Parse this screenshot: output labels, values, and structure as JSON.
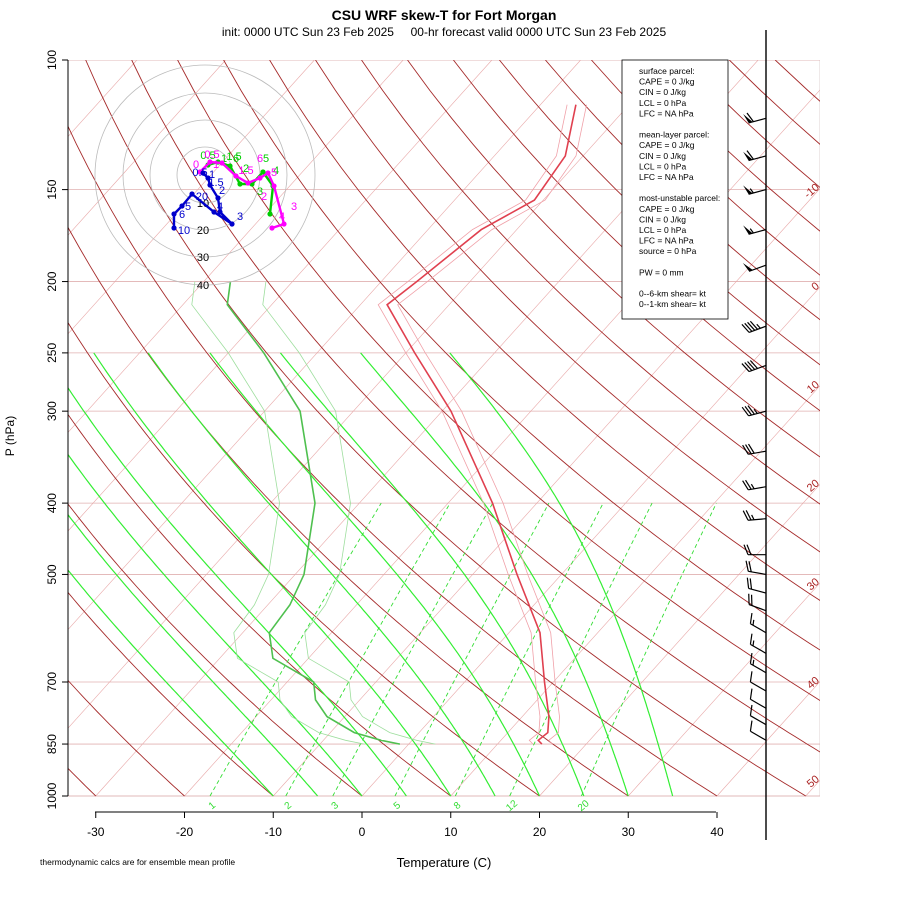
{
  "chart_data": {
    "type": "skew-t",
    "title": "CSU WRF skew-T for Fort Morgan",
    "subtitle": "init: 0000 UTC Sun 23 Feb 2025     00-hr forecast valid 0000 UTC Sun 23 Feb 2025",
    "xlabel": "Temperature (C)",
    "ylabel": "P (hPa)",
    "footnote": "thermodynamic calcs are for ensemble mean profile",
    "x_ticks": [
      -30,
      -20,
      -10,
      0,
      10,
      20,
      30,
      40
    ],
    "x_tick_labels": [
      "-30",
      "-20",
      "-10",
      "0",
      "10",
      "20",
      "30",
      "40"
    ],
    "p_ticks": [
      100,
      150,
      200,
      250,
      300,
      400,
      500,
      700,
      850,
      1000
    ],
    "p_tick_labels": [
      "100",
      "150",
      "200",
      "250",
      "300",
      "400",
      "500",
      "700",
      "850",
      "1000"
    ],
    "xlim": [
      -33,
      51
    ],
    "plim": [
      100,
      1000
    ],
    "isotherm_labels": [
      "-10",
      "0",
      "10",
      "20",
      "30",
      "40",
      "50"
    ],
    "isotherm_values": [
      -10,
      0,
      10,
      20,
      30,
      40,
      50
    ],
    "mixing_ratio_labels": [
      "1",
      "2",
      "3",
      "5",
      "8",
      "12",
      "20"
    ],
    "temperature_profile": [
      [
        850,
        15
      ],
      [
        840,
        14.2
      ],
      [
        820,
        14.5
      ],
      [
        780,
        13
      ],
      [
        700,
        9
      ],
      [
        600,
        3.5
      ],
      [
        500,
        -5
      ],
      [
        400,
        -15
      ],
      [
        300,
        -29
      ],
      [
        250,
        -39
      ],
      [
        215,
        -47
      ],
      [
        200,
        -46
      ],
      [
        170,
        -44
      ],
      [
        155,
        -41
      ],
      [
        135,
        -42
      ],
      [
        115,
        -46
      ]
    ],
    "dewpoint_profile": [
      [
        850,
        -1
      ],
      [
        840,
        -3.5
      ],
      [
        820,
        -7.3
      ],
      [
        780,
        -12
      ],
      [
        740,
        -15
      ],
      [
        700,
        -17
      ],
      [
        650,
        -24
      ],
      [
        600,
        -27
      ],
      [
        550,
        -27.5
      ],
      [
        500,
        -29
      ],
      [
        400,
        -35
      ],
      [
        300,
        -46
      ],
      [
        250,
        -56
      ],
      [
        215,
        -65
      ],
      [
        200,
        -67
      ]
    ],
    "hodograph": {
      "ring_labels": [
        "10",
        "20",
        "30",
        "40"
      ],
      "member_a": {
        "color": "#00cc00",
        "labels": [
          "0.5",
          "1",
          "1.5",
          "2",
          "3",
          "4",
          "5",
          "6"
        ]
      },
      "member_b": {
        "color": "#ff00ff",
        "labels": [
          "0",
          "0.5",
          "1",
          "1.5",
          "2",
          "3",
          "4",
          "5",
          "6"
        ]
      },
      "member_c": {
        "color": "#0000cc",
        "labels": [
          "0.5",
          "1",
          "1.5",
          "2",
          "3",
          "4",
          "5",
          "6",
          "10",
          "20"
        ]
      }
    },
    "wind_barbs": [
      {
        "p": 120,
        "spd": 60,
        "dir": 255
      },
      {
        "p": 135,
        "spd": 60,
        "dir": 255
      },
      {
        "p": 150,
        "spd": 55,
        "dir": 255
      },
      {
        "p": 170,
        "spd": 55,
        "dir": 255
      },
      {
        "p": 190,
        "spd": 50,
        "dir": 250
      },
      {
        "p": 230,
        "spd": 45,
        "dir": 250
      },
      {
        "p": 260,
        "spd": 40,
        "dir": 250
      },
      {
        "p": 300,
        "spd": 35,
        "dir": 255
      },
      {
        "p": 340,
        "spd": 30,
        "dir": 260
      },
      {
        "p": 380,
        "spd": 25,
        "dir": 260
      },
      {
        "p": 420,
        "spd": 25,
        "dir": 265
      },
      {
        "p": 470,
        "spd": 20,
        "dir": 270
      },
      {
        "p": 500,
        "spd": 20,
        "dir": 280
      },
      {
        "p": 530,
        "spd": 20,
        "dir": 285
      },
      {
        "p": 560,
        "spd": 20,
        "dir": 290
      },
      {
        "p": 600,
        "spd": 15,
        "dir": 300
      },
      {
        "p": 640,
        "spd": 15,
        "dir": 300
      },
      {
        "p": 680,
        "spd": 15,
        "dir": 300
      },
      {
        "p": 720,
        "spd": 10,
        "dir": 300
      },
      {
        "p": 760,
        "spd": 10,
        "dir": 300
      },
      {
        "p": 800,
        "spd": 10,
        "dir": 300
      },
      {
        "p": 840,
        "spd": 10,
        "dir": 300
      }
    ]
  },
  "info_box": {
    "lines": [
      "surface parcel:",
      "CAPE = 0 J/kg",
      "CIN = 0 J/kg",
      "LCL = 0 hPa",
      "LFC = NA hPa",
      "",
      "mean-layer parcel:",
      "CAPE = 0 J/kg",
      "CIN = 0 J/kg",
      "LCL = 0 hPa",
      "LFC = NA hPa",
      "",
      "most-unstable parcel:",
      "CAPE = 0 J/kg",
      "CIN = 0 J/kg",
      "LCL = 0 hPa",
      "LFC = NA hPa",
      "source = 0 hPa",
      "",
      "PW =  0 mm",
      "",
      "0--6-km shear=  kt",
      "0--1-km shear=  kt"
    ]
  },
  "colors": {
    "temperature": "#e0404f",
    "dewpoint": "#4fc04f",
    "dry_adiabat": "#a52a2a",
    "moist_adiabat": "#33ee33",
    "isotherm": "#e8a8a8",
    "isobar": "#e0b0b0",
    "mixing_ratio": "#33dd33",
    "isotherm_label": "#aa2222"
  }
}
